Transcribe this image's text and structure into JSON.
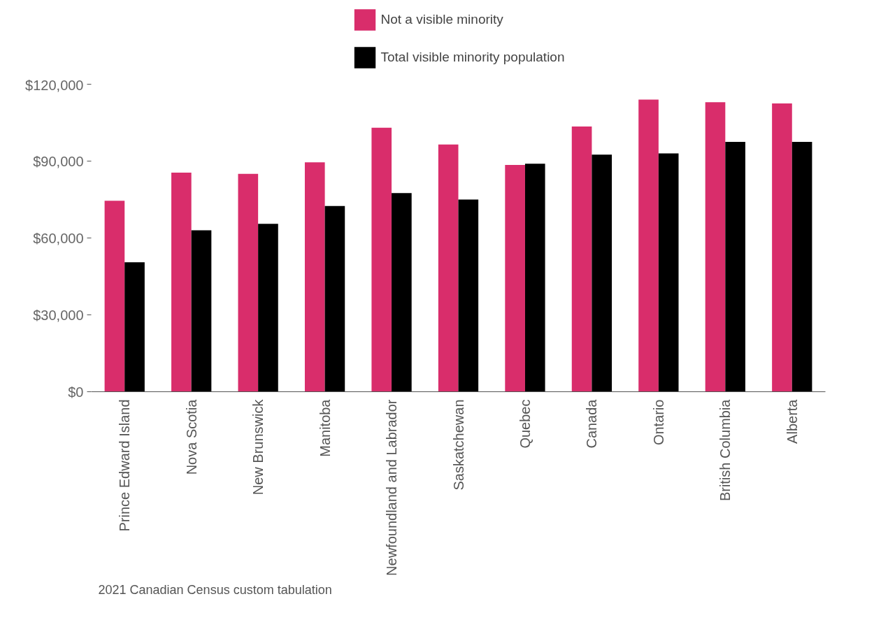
{
  "chart_data": {
    "type": "bar",
    "categories": [
      "Prince Edward Island",
      "Nova Scotia",
      "New Brunswick",
      "Manitoba",
      "Newfoundland and Labrador",
      "Saskatchewan",
      "Quebec",
      "Canada",
      "Ontario",
      "British Columbia",
      "Alberta"
    ],
    "series": [
      {
        "name": "Not a visible minority",
        "color": "#d92d6b",
        "values": [
          74500,
          85500,
          85000,
          89500,
          103000,
          96500,
          88500,
          103500,
          114000,
          113000,
          112500
        ]
      },
      {
        "name": "Total visible minority population",
        "color": "#000000",
        "values": [
          50500,
          63000,
          65500,
          72500,
          77500,
          75000,
          89000,
          92500,
          93000,
          97500,
          97500
        ]
      }
    ],
    "ylim": [
      0,
      120000
    ],
    "yticks": [
      {
        "value": 0,
        "label": "$0"
      },
      {
        "value": 30000,
        "label": "$30,000"
      },
      {
        "value": 60000,
        "label": "$60,000"
      },
      {
        "value": 90000,
        "label": "$90,000"
      },
      {
        "value": 120000,
        "label": "$120,000"
      }
    ],
    "grid": false,
    "legend": "top",
    "annotations": [
      "2021 Canadian Census custom tabulation"
    ]
  }
}
